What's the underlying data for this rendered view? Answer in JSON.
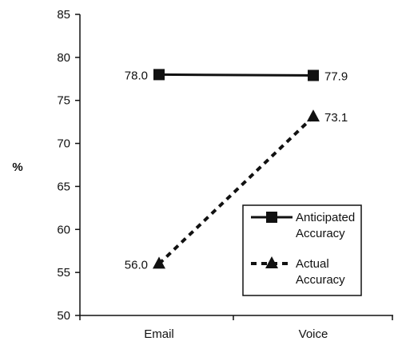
{
  "chart_data": {
    "type": "line",
    "categories": [
      "Email",
      "Voice"
    ],
    "ylabel": "%",
    "xlabel": "",
    "ylim": [
      50,
      85
    ],
    "yticks": [
      50,
      55,
      60,
      65,
      70,
      75,
      80,
      85
    ],
    "grid": false,
    "legend_position": "bottom-right",
    "series": [
      {
        "name": "Anticipated Accuracy",
        "name_lines": [
          "Anticipated",
          "Accuracy"
        ],
        "values": [
          78.0,
          77.9
        ],
        "labels": [
          "78.0",
          "77.9"
        ],
        "line_style": "solid",
        "marker": "square",
        "color": "#111111"
      },
      {
        "name": "Actual Accuracy",
        "name_lines": [
          "Actual",
          "Accuracy"
        ],
        "values": [
          56.0,
          73.1
        ],
        "labels": [
          "56.0",
          "73.1"
        ],
        "line_style": "dashed",
        "marker": "triangle",
        "color": "#111111"
      }
    ]
  }
}
